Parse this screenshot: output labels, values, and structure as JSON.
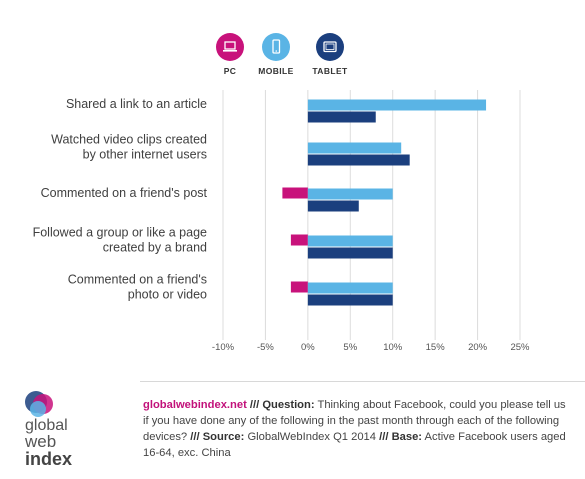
{
  "colors": {
    "pc": "#c8127b",
    "mobile": "#5ab4e5",
    "tablet": "#1b3f7e",
    "grid": "#dcdcdc",
    "site": "#c2117a"
  },
  "legend": [
    {
      "name": "PC",
      "icon": "laptop-icon",
      "color": "#c8127b"
    },
    {
      "name": "MOBILE",
      "icon": "smartphone-icon",
      "color": "#5ab4e5"
    },
    {
      "name": "TABLET",
      "icon": "tablet-icon",
      "color": "#1b3f7e"
    }
  ],
  "chart_data": {
    "type": "bar",
    "orientation": "horizontal",
    "categories": [
      [
        "Shared a link to an article"
      ],
      [
        "Watched video clips created",
        "by other internet users"
      ],
      [
        "Commented on a friend's post"
      ],
      [
        "Followed a group or like a page",
        "created by a brand"
      ],
      [
        "Commented on a friend's",
        "photo or video"
      ]
    ],
    "series": [
      {
        "name": "PC",
        "values": [
          0,
          0,
          -3,
          -2,
          -2
        ]
      },
      {
        "name": "MOBILE",
        "values": [
          21,
          11,
          10,
          10,
          10
        ]
      },
      {
        "name": "TABLET",
        "values": [
          8,
          12,
          6,
          10,
          10
        ]
      }
    ],
    "xlim": [
      -10,
      25
    ],
    "xticks": [
      "-10%",
      "-5%",
      "0%",
      "5%",
      "10%",
      "15%",
      "20%",
      "25%"
    ],
    "grid": true,
    "legend_position": "top"
  },
  "logo": {
    "lines": [
      "global",
      "web",
      "index"
    ]
  },
  "footnote": {
    "site": "globalwebindex.net",
    "sep": " /// ",
    "question_label": "Question:",
    "question": " Thinking about Facebook, could you please tell us if you have done any of the following in the past month through each of the following devices?",
    "source_label": "Source:",
    "source": " GlobalWebIndex Q1 2014",
    "base_label": "Base:",
    "base": " Active Facebook users aged 16-64, exc. China"
  }
}
